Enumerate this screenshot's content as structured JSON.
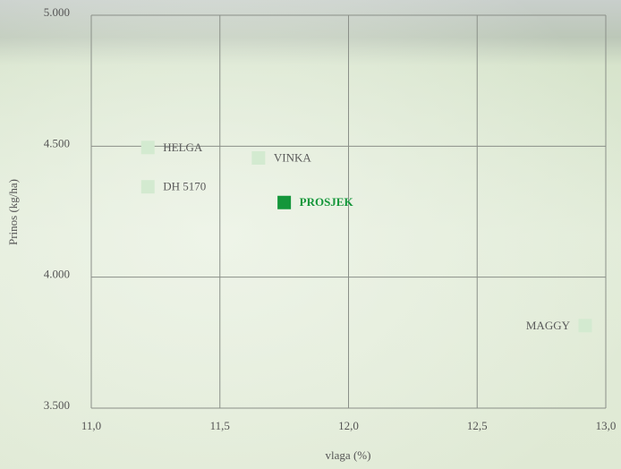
{
  "chart_data": {
    "type": "scatter",
    "xlabel": "vlaga (%)",
    "ylabel": "Prinos (kg/ha)",
    "xlim": [
      11,
      13
    ],
    "ylim": [
      3500,
      5000
    ],
    "xticks": [
      {
        "value": 11,
        "label": "11,0"
      },
      {
        "value": 11.5,
        "label": "11,5"
      },
      {
        "value": 12,
        "label": "12,0"
      },
      {
        "value": 12.5,
        "label": "12,5"
      },
      {
        "value": 13,
        "label": "13,0"
      }
    ],
    "yticks": [
      {
        "value": 3500,
        "label": "3.500"
      },
      {
        "value": 4000,
        "label": "4.000"
      },
      {
        "value": 4500,
        "label": "4.500"
      },
      {
        "value": 5000,
        "label": "5.000"
      }
    ],
    "grid": true,
    "labels": [
      "HELGA",
      "DH 5170",
      "VINKA",
      "PROSJEK",
      "MAGGY"
    ],
    "x": [
      11.22,
      11.22,
      11.65,
      11.75,
      12.92
    ],
    "y": [
      4495,
      4345,
      4455,
      4285,
      3815
    ],
    "colors": [
      "#d3ead0",
      "#d3ead0",
      "#d3ead0",
      "#14963a",
      "#d3ead0"
    ],
    "label_colors": [
      "#5a5a5a",
      "#5a5a5a",
      "#5a5a5a",
      "#14963a",
      "#5a5a5a"
    ],
    "label_weights": [
      "normal",
      "normal",
      "normal",
      "bold",
      "normal"
    ]
  }
}
